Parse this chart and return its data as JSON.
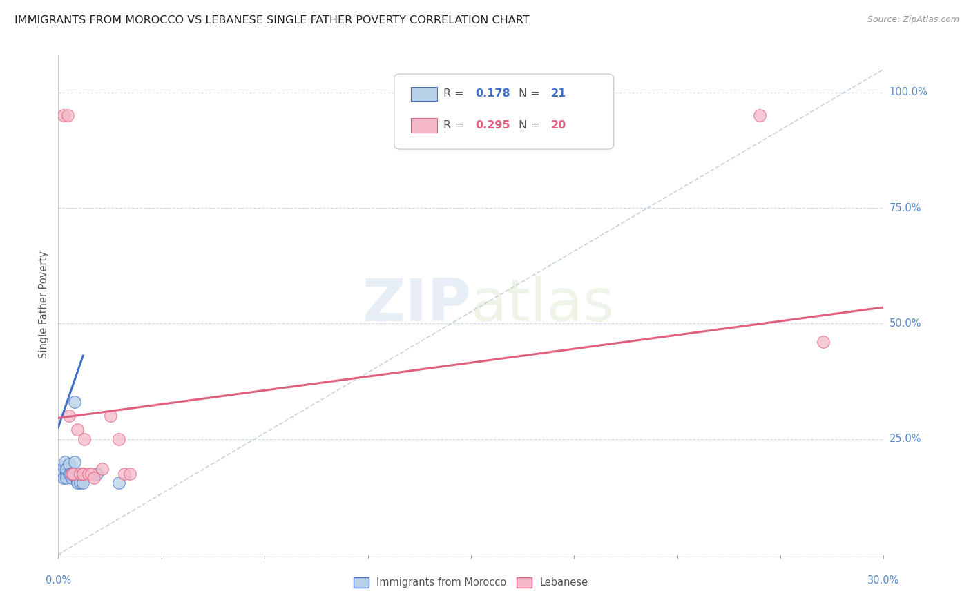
{
  "title": "IMMIGRANTS FROM MOROCCO VS LEBANESE SINGLE FATHER POVERTY CORRELATION CHART",
  "source": "Source: ZipAtlas.com",
  "ylabel": "Single Father Poverty",
  "legend_label1": "Immigrants from Morocco",
  "legend_label2": "Lebanese",
  "R1": 0.178,
  "N1": 21,
  "R2": 0.295,
  "N2": 20,
  "color1": "#b8d0e8",
  "color2": "#f5b8c8",
  "line_color1": "#4070c8",
  "line_color2": "#e06080",
  "watermark_zip": "ZIP",
  "watermark_atlas": "atlas",
  "ytick_vals": [
    0.0,
    0.25,
    0.5,
    0.75,
    1.0
  ],
  "ytick_labels": [
    "",
    "25.0%",
    "50.0%",
    "75.0%",
    "100.0%"
  ],
  "xlim": [
    0.0,
    0.3
  ],
  "ylim": [
    0.0,
    1.08
  ],
  "morocco_x": [
    0.0008,
    0.0015,
    0.0018,
    0.002,
    0.0025,
    0.003,
    0.003,
    0.003,
    0.004,
    0.004,
    0.0045,
    0.005,
    0.005,
    0.006,
    0.006,
    0.007,
    0.007,
    0.008,
    0.009,
    0.014,
    0.022
  ],
  "morocco_y": [
    0.175,
    0.18,
    0.19,
    0.165,
    0.2,
    0.175,
    0.165,
    0.185,
    0.175,
    0.195,
    0.175,
    0.165,
    0.175,
    0.33,
    0.2,
    0.16,
    0.155,
    0.155,
    0.155,
    0.175,
    0.155
  ],
  "lebanese_x": [
    0.002,
    0.0035,
    0.004,
    0.005,
    0.0055,
    0.007,
    0.008,
    0.009,
    0.009,
    0.0095,
    0.011,
    0.012,
    0.013,
    0.016,
    0.019,
    0.022,
    0.024,
    0.026,
    0.255,
    0.278
  ],
  "lebanese_y": [
    0.95,
    0.95,
    0.3,
    0.175,
    0.175,
    0.27,
    0.175,
    0.175,
    0.175,
    0.25,
    0.175,
    0.175,
    0.165,
    0.185,
    0.3,
    0.25,
    0.175,
    0.175,
    0.95,
    0.46
  ],
  "morocco_line_x": [
    0.0,
    0.009
  ],
  "morocco_line_y": [
    0.275,
    0.43
  ],
  "lebanese_line_x": [
    0.0,
    0.3
  ],
  "lebanese_line_y": [
    0.295,
    0.535
  ],
  "diag_line_x": [
    0.0,
    0.3
  ],
  "diag_line_y": [
    0.0,
    1.05
  ]
}
